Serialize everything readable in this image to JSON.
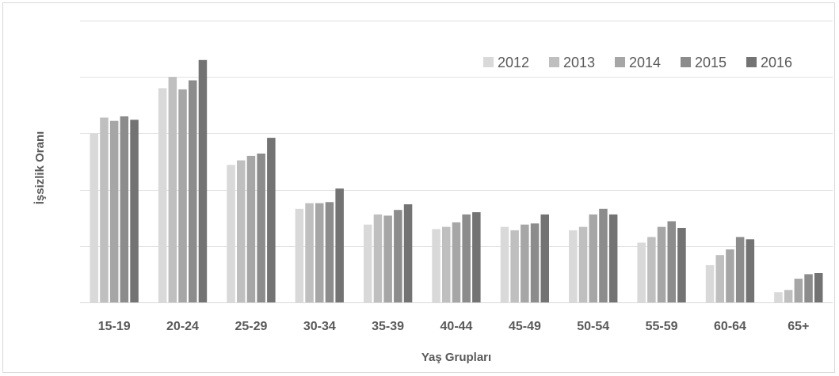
{
  "chart_data": {
    "type": "bar",
    "title": "",
    "xlabel": "Yaş Grupları",
    "ylabel": "İşsizlik Oranı",
    "categories": [
      "15-19",
      "20-24",
      "25-29",
      "30-34",
      "35-39",
      "40-44",
      "45-49",
      "50-54",
      "55-59",
      "60-64",
      "65+"
    ],
    "series": [
      {
        "name": "2012",
        "color": "#d9d9d9",
        "values": [
          15.0,
          19.0,
          12.2,
          8.3,
          6.9,
          6.5,
          6.7,
          6.4,
          5.3,
          3.3,
          0.9
        ]
      },
      {
        "name": "2013",
        "color": "#bfbfbf",
        "values": [
          16.4,
          20.0,
          12.6,
          8.8,
          7.8,
          6.7,
          6.4,
          6.7,
          5.8,
          4.2,
          1.1
        ]
      },
      {
        "name": "2014",
        "color": "#a6a6a6",
        "values": [
          16.1,
          18.9,
          13.0,
          8.8,
          7.7,
          7.1,
          6.9,
          7.8,
          6.7,
          4.7,
          2.1
        ]
      },
      {
        "name": "2015",
        "color": "#8c8c8c",
        "values": [
          16.5,
          19.7,
          13.2,
          8.9,
          8.2,
          7.8,
          7.0,
          8.3,
          7.2,
          5.8,
          2.5
        ]
      },
      {
        "name": "2016",
        "color": "#737373",
        "values": [
          16.2,
          21.5,
          14.6,
          10.1,
          8.7,
          8.0,
          7.8,
          7.8,
          6.6,
          5.6,
          2.6
        ]
      }
    ],
    "ylim": [
      0,
      25
    ],
    "y_tick_step": 5,
    "y_tick_labels_shown": false,
    "grid": true,
    "legend_position": "top-right"
  }
}
